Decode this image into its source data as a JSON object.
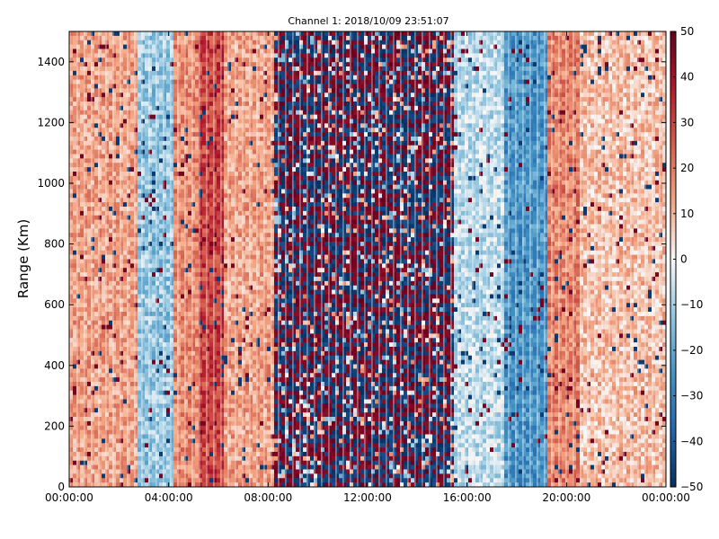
{
  "chart_data": {
    "type": "heatmap",
    "title": "Channel 1: 2018/10/09 23:51:07",
    "xlabel": "",
    "ylabel": "Range (Km)",
    "x_tick_labels": [
      "00:00:00",
      "04:00:00",
      "08:00:00",
      "12:00:00",
      "16:00:00",
      "20:00:00",
      "00:00:00"
    ],
    "x_range_hours": [
      0,
      24
    ],
    "y_ticks": [
      0,
      200,
      400,
      600,
      800,
      1000,
      1200,
      1400
    ],
    "ylim": [
      0,
      1500
    ],
    "colorbar": {
      "colormap": "RdBu_r",
      "ticks": [
        50,
        40,
        30,
        20,
        10,
        0,
        -10,
        -20,
        -30,
        -40,
        -50
      ],
      "range": [
        -50,
        50
      ]
    },
    "grid": false,
    "colors": {
      "low": "#053061",
      "mid": "#f7f7f7",
      "high": "#67001f"
    }
  }
}
